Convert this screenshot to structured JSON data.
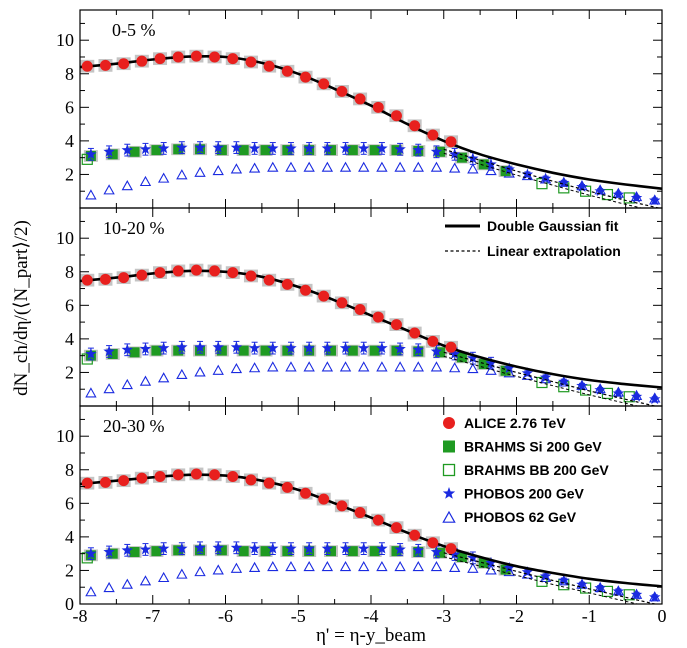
{
  "chart_data": {
    "type": "scatter",
    "xlabel": "η' = η-y_beam",
    "ylabel": "dN_ch/dη/(⟨N_part⟩/2)",
    "xlim": [
      -8,
      0
    ],
    "ylim": [
      0,
      11.8
    ],
    "x_ticks": [
      "-8",
      "-7",
      "-6",
      "-5",
      "-4",
      "-3",
      "-2",
      "-1",
      "0"
    ],
    "y_ticks": [
      "0",
      "2",
      "4",
      "6",
      "8",
      "10"
    ],
    "legend": {
      "fits": [
        "Double Gaussian fit",
        "Linear extrapolation"
      ],
      "series": [
        "ALICE 2.76 TeV",
        "BRAHMS Si 200 GeV",
        "BRAHMS BB 200 GeV",
        "PHOBOS 200 GeV",
        "PHOBOS 62 GeV"
      ]
    },
    "colors": {
      "alice": "#e8201e",
      "brahms_si": "#1f9a22",
      "brahms_bb": "#1f9a22",
      "phobos200": "#1a2ae0",
      "phobos62": "#1a2ae0",
      "band": "#c4c4c4"
    },
    "panels": [
      {
        "label": "0-5 %",
        "alice": {
          "x": [
            -7.9,
            -7.65,
            -7.4,
            -7.15,
            -6.9,
            -6.65,
            -6.4,
            -6.15,
            -5.9,
            -5.65,
            -5.4,
            -5.15,
            -4.9,
            -4.65,
            -4.4,
            -4.15,
            -3.9,
            -3.65,
            -3.4,
            -3.15,
            -2.9
          ],
          "y": [
            8.45,
            8.5,
            8.6,
            8.75,
            8.9,
            9.0,
            9.05,
            9.0,
            8.9,
            8.7,
            8.45,
            8.15,
            7.8,
            7.4,
            6.95,
            6.5,
            6.0,
            5.5,
            4.9,
            4.35,
            3.95
          ]
        },
        "fit": {
          "x": [
            -8,
            -7.5,
            -7,
            -6.5,
            -6,
            -5.5,
            -5,
            -4.5,
            -4,
            -3.5,
            -3,
            -2.5,
            -2,
            -1.5,
            -1,
            -0.5,
            0
          ],
          "y": [
            8.4,
            8.6,
            8.85,
            9.02,
            9.0,
            8.65,
            8.0,
            7.1,
            6.1,
            5.0,
            4.0,
            3.2,
            2.6,
            2.1,
            1.7,
            1.4,
            1.15
          ]
        },
        "extrapolation": {
          "x": [
            -3.0,
            -2.5,
            -2.0,
            -1.5,
            -1.0,
            -0.5,
            0
          ],
          "y": [
            3.5,
            2.85,
            2.2,
            1.6,
            1.0,
            0.45,
            -0.05
          ]
        },
        "brahms_si": {
          "x": [
            -7.85,
            -7.55,
            -7.25,
            -6.95,
            -6.65,
            -6.35,
            -6.05,
            -5.75,
            -5.45,
            -5.15,
            -4.85,
            -4.55,
            -4.25,
            -3.95,
            -3.65,
            -3.35,
            -3.05,
            -2.75,
            -2.45,
            -2.15
          ],
          "y": [
            3.1,
            3.2,
            3.35,
            3.45,
            3.5,
            3.5,
            3.45,
            3.45,
            3.45,
            3.45,
            3.45,
            3.45,
            3.45,
            3.45,
            3.45,
            3.4,
            3.35,
            3.0,
            2.6,
            2.2
          ]
        },
        "brahms_bb": {
          "x": [
            -7.9,
            -1.65,
            -1.35,
            -1.05,
            -0.75,
            -0.45
          ],
          "y": [
            2.9,
            1.45,
            1.2,
            1.0,
            0.8,
            0.6
          ]
        },
        "phobos200": {
          "x": [
            -7.85,
            -7.6,
            -7.35,
            -7.1,
            -6.85,
            -6.6,
            -6.35,
            -6.1,
            -5.85,
            -5.6,
            -5.35,
            -5.1,
            -4.85,
            -4.6,
            -4.35,
            -4.1,
            -3.85,
            -3.6,
            -3.35,
            -3.1,
            -2.85,
            -2.6,
            -2.35,
            -2.1,
            -1.85,
            -1.6,
            -1.35,
            -1.1,
            -0.85,
            -0.6,
            -0.35,
            -0.1
          ],
          "y": [
            3.2,
            3.35,
            3.45,
            3.5,
            3.55,
            3.6,
            3.6,
            3.6,
            3.6,
            3.55,
            3.55,
            3.55,
            3.55,
            3.55,
            3.55,
            3.55,
            3.55,
            3.5,
            3.45,
            3.35,
            3.2,
            2.95,
            2.6,
            2.3,
            2.0,
            1.75,
            1.5,
            1.25,
            1.0,
            0.8,
            0.6,
            0.45
          ]
        },
        "phobos62": {
          "x": [
            -7.85,
            -7.6,
            -7.35,
            -7.1,
            -6.85,
            -6.6,
            -6.35,
            -6.1,
            -5.85,
            -5.6,
            -5.35,
            -5.1,
            -4.85,
            -4.6,
            -4.35,
            -4.1,
            -3.85,
            -3.6,
            -3.35,
            -3.1,
            -2.85,
            -2.6,
            -2.35,
            -2.1,
            -1.85,
            -1.6,
            -1.35,
            -1.1,
            -0.85,
            -0.6,
            -0.35,
            -0.1
          ],
          "y": [
            0.75,
            1.05,
            1.3,
            1.55,
            1.75,
            1.95,
            2.1,
            2.2,
            2.3,
            2.35,
            2.4,
            2.4,
            2.4,
            2.4,
            2.4,
            2.4,
            2.4,
            2.4,
            2.4,
            2.4,
            2.35,
            2.3,
            2.2,
            2.05,
            1.9,
            1.7,
            1.5,
            1.3,
            1.05,
            0.85,
            0.65,
            0.45
          ]
        }
      },
      {
        "label": "10-20 %",
        "alice": {
          "x": [
            -7.9,
            -7.65,
            -7.4,
            -7.15,
            -6.9,
            -6.65,
            -6.4,
            -6.15,
            -5.9,
            -5.65,
            -5.4,
            -5.15,
            -4.9,
            -4.65,
            -4.4,
            -4.15,
            -3.9,
            -3.65,
            -3.4,
            -3.15,
            -2.9
          ],
          "y": [
            7.5,
            7.55,
            7.65,
            7.8,
            7.95,
            8.05,
            8.1,
            8.05,
            7.95,
            7.75,
            7.5,
            7.25,
            6.9,
            6.55,
            6.15,
            5.75,
            5.3,
            4.85,
            4.35,
            3.85,
            3.5
          ]
        },
        "fit": {
          "x": [
            -8,
            -7.5,
            -7,
            -6.5,
            -6,
            -5.5,
            -5,
            -4.5,
            -4,
            -3.5,
            -3,
            -2.5,
            -2,
            -1.5,
            -1,
            -0.5,
            0
          ],
          "y": [
            7.45,
            7.65,
            7.9,
            8.05,
            8.0,
            7.7,
            7.1,
            6.3,
            5.4,
            4.5,
            3.6,
            2.9,
            2.35,
            1.9,
            1.55,
            1.3,
            1.1
          ]
        },
        "extrapolation": {
          "x": [
            -3.0,
            -2.5,
            -2.0,
            -1.5,
            -1.0,
            -0.5,
            0
          ],
          "y": [
            3.2,
            2.6,
            2.0,
            1.45,
            0.9,
            0.4,
            -0.1
          ]
        },
        "brahms_si": {
          "x": [
            -7.85,
            -7.55,
            -7.25,
            -6.95,
            -6.65,
            -6.35,
            -6.05,
            -5.75,
            -5.45,
            -5.15,
            -4.85,
            -4.55,
            -4.25,
            -3.95,
            -3.65,
            -3.35,
            -3.05,
            -2.75,
            -2.45,
            -2.15
          ],
          "y": [
            3.0,
            3.1,
            3.2,
            3.3,
            3.3,
            3.3,
            3.3,
            3.3,
            3.3,
            3.3,
            3.3,
            3.3,
            3.3,
            3.3,
            3.3,
            3.25,
            3.2,
            2.9,
            2.5,
            2.1
          ]
        },
        "brahms_bb": {
          "x": [
            -7.9,
            -1.65,
            -1.35,
            -1.05,
            -0.75,
            -0.45
          ],
          "y": [
            2.8,
            1.4,
            1.15,
            0.95,
            0.75,
            0.55
          ]
        },
        "phobos200": {
          "x": [
            -7.85,
            -7.6,
            -7.35,
            -7.1,
            -6.85,
            -6.6,
            -6.35,
            -6.1,
            -5.85,
            -5.6,
            -5.35,
            -5.1,
            -4.85,
            -4.6,
            -4.35,
            -4.1,
            -3.85,
            -3.6,
            -3.35,
            -3.1,
            -2.85,
            -2.6,
            -2.35,
            -2.1,
            -1.85,
            -1.6,
            -1.35,
            -1.1,
            -0.85,
            -0.6,
            -0.35,
            -0.1
          ],
          "y": [
            3.1,
            3.25,
            3.35,
            3.4,
            3.45,
            3.5,
            3.5,
            3.5,
            3.5,
            3.45,
            3.45,
            3.45,
            3.45,
            3.45,
            3.45,
            3.45,
            3.45,
            3.4,
            3.35,
            3.25,
            3.1,
            2.85,
            2.55,
            2.25,
            1.95,
            1.7,
            1.45,
            1.2,
            0.95,
            0.75,
            0.55,
            0.4
          ]
        },
        "phobos62": {
          "x": [
            -7.85,
            -7.6,
            -7.35,
            -7.1,
            -6.85,
            -6.6,
            -6.35,
            -6.1,
            -5.85,
            -5.6,
            -5.35,
            -5.1,
            -4.85,
            -4.6,
            -4.35,
            -4.1,
            -3.85,
            -3.6,
            -3.35,
            -3.1,
            -2.85,
            -2.6,
            -2.35,
            -2.1,
            -1.85,
            -1.6,
            -1.35,
            -1.1,
            -0.85,
            -0.6,
            -0.35,
            -0.1
          ],
          "y": [
            0.75,
            1.0,
            1.25,
            1.45,
            1.65,
            1.85,
            2.0,
            2.1,
            2.2,
            2.25,
            2.3,
            2.3,
            2.3,
            2.3,
            2.3,
            2.3,
            2.3,
            2.3,
            2.3,
            2.3,
            2.25,
            2.2,
            2.1,
            1.95,
            1.8,
            1.6,
            1.4,
            1.2,
            1.0,
            0.8,
            0.6,
            0.45
          ]
        }
      },
      {
        "label": "20-30 %",
        "alice": {
          "x": [
            -7.9,
            -7.65,
            -7.4,
            -7.15,
            -6.9,
            -6.65,
            -6.4,
            -6.15,
            -5.9,
            -5.65,
            -5.4,
            -5.15,
            -4.9,
            -4.65,
            -4.4,
            -4.15,
            -3.9,
            -3.65,
            -3.4,
            -3.15,
            -2.9
          ],
          "y": [
            7.2,
            7.25,
            7.35,
            7.5,
            7.6,
            7.7,
            7.75,
            7.7,
            7.6,
            7.4,
            7.2,
            6.95,
            6.6,
            6.25,
            5.85,
            5.45,
            5.0,
            4.55,
            4.1,
            3.65,
            3.3
          ]
        },
        "fit": {
          "x": [
            -8,
            -7.5,
            -7,
            -6.5,
            -6,
            -5.5,
            -5,
            -4.5,
            -4,
            -3.5,
            -3,
            -2.5,
            -2,
            -1.5,
            -1,
            -0.5,
            0
          ],
          "y": [
            7.15,
            7.35,
            7.55,
            7.7,
            7.65,
            7.35,
            6.8,
            6.0,
            5.15,
            4.25,
            3.45,
            2.8,
            2.25,
            1.85,
            1.5,
            1.25,
            1.05
          ]
        },
        "extrapolation": {
          "x": [
            -3.0,
            -2.5,
            -2.0,
            -1.5,
            -1.0,
            -0.5,
            0
          ],
          "y": [
            3.05,
            2.5,
            1.95,
            1.4,
            0.9,
            0.4,
            -0.1
          ]
        },
        "brahms_si": {
          "x": [
            -7.85,
            -7.55,
            -7.25,
            -6.95,
            -6.65,
            -6.35,
            -6.05,
            -5.75,
            -5.45,
            -5.15,
            -4.85,
            -4.55,
            -4.25,
            -3.95,
            -3.65,
            -3.35,
            -3.05,
            -2.75,
            -2.45,
            -2.15
          ],
          "y": [
            2.9,
            3.0,
            3.1,
            3.15,
            3.2,
            3.2,
            3.2,
            3.15,
            3.15,
            3.15,
            3.15,
            3.15,
            3.15,
            3.15,
            3.15,
            3.1,
            3.05,
            2.8,
            2.45,
            2.05
          ]
        },
        "brahms_bb": {
          "x": [
            -7.9,
            -1.65,
            -1.35,
            -1.05,
            -0.75,
            -0.45
          ],
          "y": [
            2.75,
            1.35,
            1.15,
            0.95,
            0.75,
            0.55
          ]
        },
        "phobos200": {
          "x": [
            -7.85,
            -7.6,
            -7.35,
            -7.1,
            -6.85,
            -6.6,
            -6.35,
            -6.1,
            -5.85,
            -5.6,
            -5.35,
            -5.1,
            -4.85,
            -4.6,
            -4.35,
            -4.1,
            -3.85,
            -3.6,
            -3.35,
            -3.1,
            -2.85,
            -2.6,
            -2.35,
            -2.1,
            -1.85,
            -1.6,
            -1.35,
            -1.1,
            -0.85,
            -0.6,
            -0.35,
            -0.1
          ],
          "y": [
            3.0,
            3.1,
            3.2,
            3.25,
            3.3,
            3.3,
            3.35,
            3.35,
            3.35,
            3.3,
            3.3,
            3.3,
            3.3,
            3.3,
            3.3,
            3.3,
            3.3,
            3.25,
            3.2,
            3.1,
            2.95,
            2.75,
            2.45,
            2.15,
            1.9,
            1.65,
            1.4,
            1.15,
            0.95,
            0.75,
            0.55,
            0.4
          ]
        },
        "phobos62": {
          "x": [
            -7.85,
            -7.6,
            -7.35,
            -7.1,
            -6.85,
            -6.6,
            -6.35,
            -6.1,
            -5.85,
            -5.6,
            -5.35,
            -5.1,
            -4.85,
            -4.6,
            -4.35,
            -4.1,
            -3.85,
            -3.6,
            -3.35,
            -3.1,
            -2.85,
            -2.6,
            -2.35,
            -2.1,
            -1.85,
            -1.6,
            -1.35,
            -1.1,
            -0.85,
            -0.6,
            -0.35,
            -0.1
          ],
          "y": [
            0.7,
            0.95,
            1.15,
            1.35,
            1.55,
            1.75,
            1.9,
            2.0,
            2.1,
            2.15,
            2.2,
            2.2,
            2.2,
            2.2,
            2.2,
            2.2,
            2.2,
            2.2,
            2.2,
            2.2,
            2.15,
            2.1,
            2.0,
            1.9,
            1.75,
            1.55,
            1.35,
            1.15,
            0.95,
            0.75,
            0.55,
            0.4
          ]
        }
      }
    ]
  }
}
